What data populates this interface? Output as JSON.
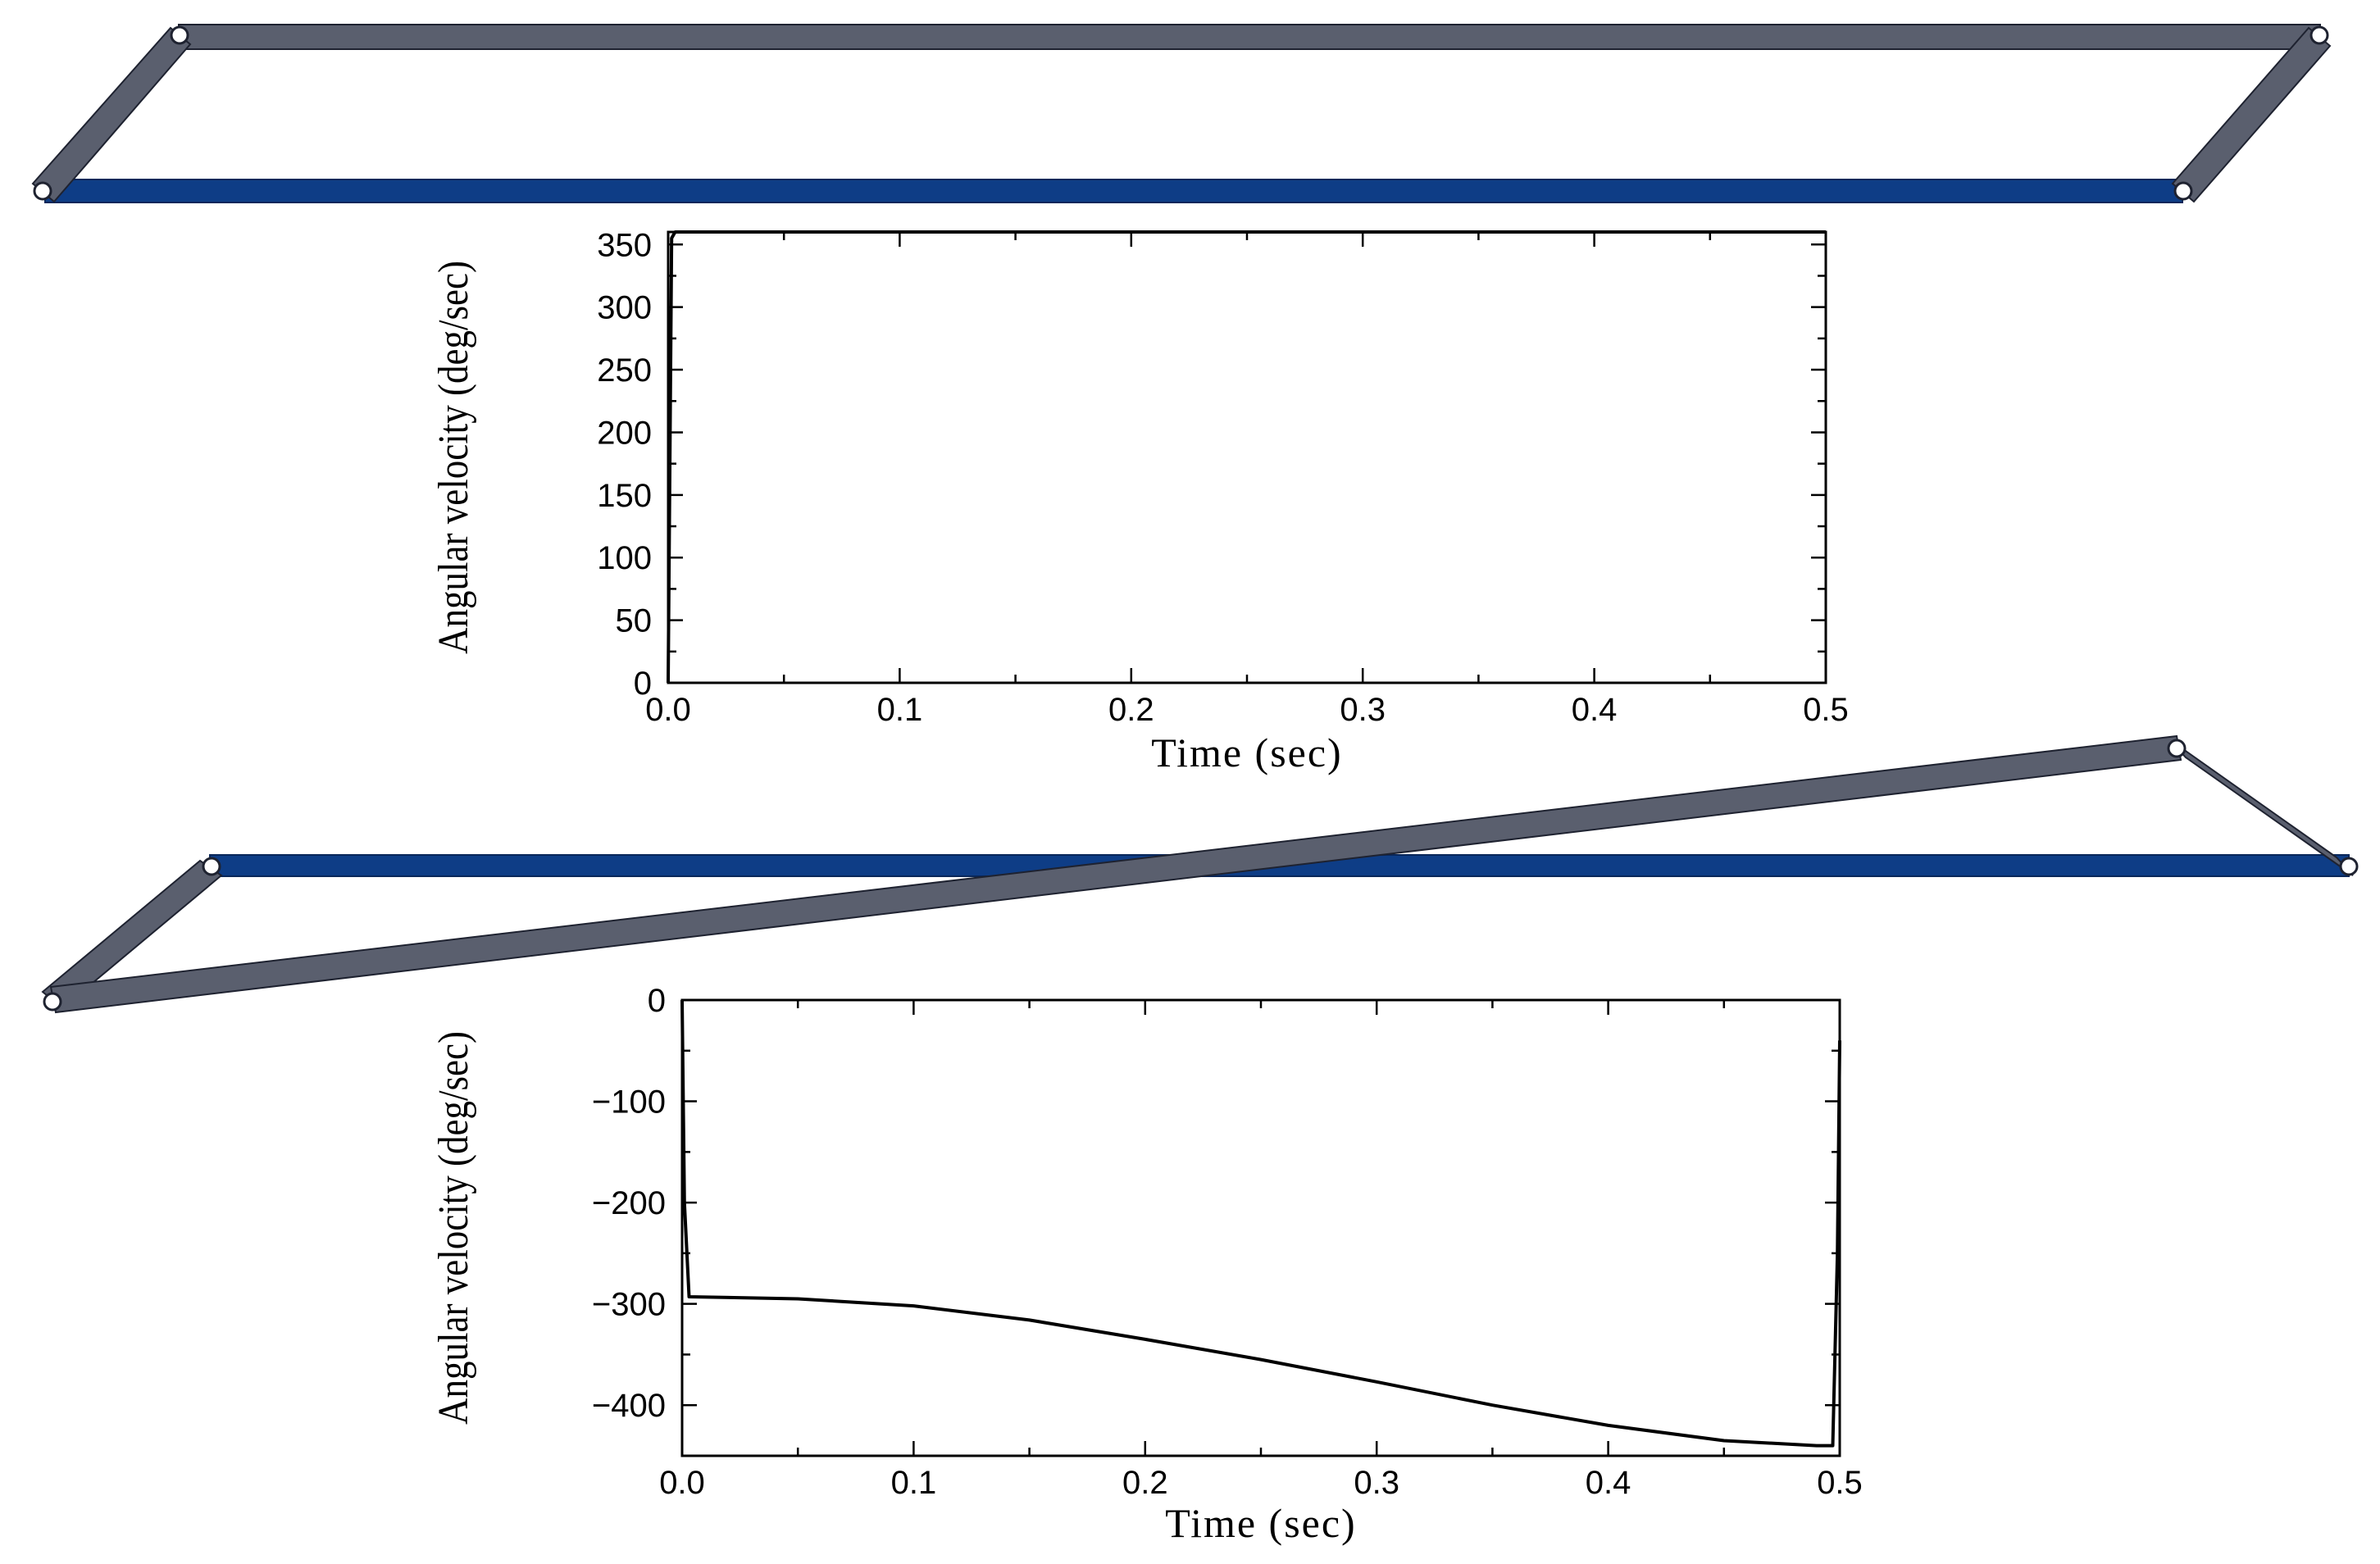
{
  "colors": {
    "link": "#5a5f6e",
    "link_stroke": "#1e2230",
    "ground": "#0e3d86",
    "ground_stroke": "#09275a",
    "curve": "#000000",
    "axis": "#000000"
  },
  "chart_data": [
    {
      "type": "line",
      "title": "",
      "xlabel": "Time (sec)",
      "ylabel": "Angular velocity (deg/sec)",
      "xlim": [
        0.0,
        0.5
      ],
      "ylim": [
        0,
        360
      ],
      "xticks": [
        0.0,
        0.1,
        0.2,
        0.3,
        0.4,
        0.5
      ],
      "xtick_labels": [
        "0.0",
        "0.1",
        "0.2",
        "0.3",
        "0.4",
        "0.5"
      ],
      "yticks": [
        0,
        50,
        100,
        150,
        200,
        250,
        300,
        350
      ],
      "ytick_labels": [
        "0",
        "50",
        "100",
        "150",
        "200",
        "250",
        "300",
        "350"
      ],
      "grid": false,
      "legend": "none",
      "series": [
        {
          "x": [
            0.0,
            0.0015,
            0.003,
            0.01,
            0.1,
            0.2,
            0.3,
            0.4,
            0.5
          ],
          "values": [
            0,
            355,
            360,
            360,
            360,
            360,
            360,
            360,
            360
          ]
        }
      ]
    },
    {
      "type": "line",
      "title": "",
      "xlabel": "Time (sec)",
      "ylabel": "Angular velocity (deg/sec)",
      "xlim": [
        0.0,
        0.5
      ],
      "ylim": [
        -450,
        0
      ],
      "xticks": [
        0.0,
        0.1,
        0.2,
        0.3,
        0.4,
        0.5
      ],
      "xtick_labels": [
        "0.0",
        "0.1",
        "0.2",
        "0.3",
        "0.4",
        "0.5"
      ],
      "yticks": [
        0,
        -100,
        -200,
        -300,
        -400
      ],
      "ytick_labels": [
        "0",
        "−100",
        "−200",
        "−300",
        "−400"
      ],
      "grid": false,
      "legend": "none",
      "series": [
        {
          "x": [
            0.0,
            0.001,
            0.003,
            0.05,
            0.1,
            0.15,
            0.2,
            0.25,
            0.3,
            0.35,
            0.4,
            0.45,
            0.49,
            0.497,
            0.499,
            0.5
          ],
          "values": [
            0,
            -200,
            -293,
            -295,
            -302,
            -316,
            -335,
            -355,
            -377,
            -400,
            -420,
            -435,
            -440,
            -440,
            -250,
            -40
          ]
        }
      ]
    }
  ]
}
